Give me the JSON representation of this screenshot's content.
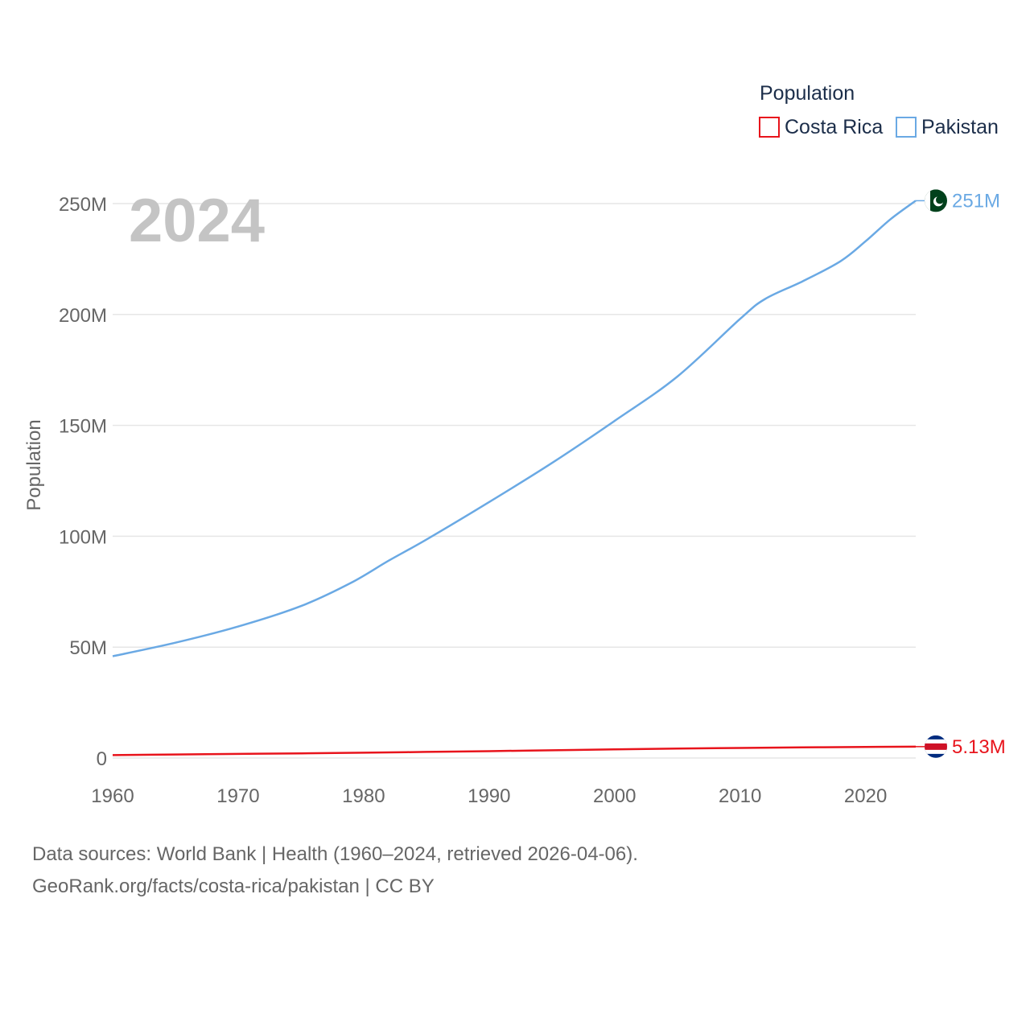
{
  "chart_data": {
    "type": "line",
    "title": "Population",
    "year_label": "2024",
    "xlabel": "",
    "ylabel": "Population",
    "xlim": [
      1960,
      2024
    ],
    "ylim": [
      0,
      250000000
    ],
    "x_ticks": [
      1960,
      1970,
      1980,
      1990,
      2000,
      2010,
      2020
    ],
    "x_tick_labels": [
      "1960",
      "1970",
      "1980",
      "1990",
      "2000",
      "2010",
      "2020"
    ],
    "y_ticks": [
      0,
      50000000,
      100000000,
      150000000,
      200000000,
      250000000
    ],
    "y_tick_labels": [
      "0",
      "50M",
      "100M",
      "150M",
      "200M",
      "250M"
    ],
    "grid": true,
    "legend": {
      "title": "Population",
      "placement": "top-right"
    },
    "series": [
      {
        "name": "Costa Rica",
        "color": "#e8141c",
        "end_label": "5.13M",
        "flag": "costa-rica-flag-icon",
        "points": [
          [
            1960,
            1300000
          ],
          [
            1965,
            1600000
          ],
          [
            1970,
            1850000
          ],
          [
            1975,
            2100000
          ],
          [
            1980,
            2400000
          ],
          [
            1985,
            2750000
          ],
          [
            1990,
            3100000
          ],
          [
            1995,
            3500000
          ],
          [
            2000,
            3900000
          ],
          [
            2005,
            4250000
          ],
          [
            2010,
            4550000
          ],
          [
            2015,
            4800000
          ],
          [
            2020,
            5000000
          ],
          [
            2024,
            5130000
          ]
        ]
      },
      {
        "name": "Pakistan",
        "color": "#6aa9e4",
        "end_label": "251M",
        "flag": "pakistan-flag-icon",
        "points": [
          [
            1960,
            45900000
          ],
          [
            1965,
            52000000
          ],
          [
            1970,
            59300000
          ],
          [
            1975,
            68500000
          ],
          [
            1979,
            79000000
          ],
          [
            1982,
            89000000
          ],
          [
            1985,
            98500000
          ],
          [
            1990,
            115400000
          ],
          [
            1995,
            133000000
          ],
          [
            2000,
            152000000
          ],
          [
            2005,
            172000000
          ],
          [
            2010,
            198000000
          ],
          [
            2012,
            207000000
          ],
          [
            2015,
            215000000
          ],
          [
            2018,
            224000000
          ],
          [
            2020,
            233000000
          ],
          [
            2022,
            243000000
          ],
          [
            2024,
            251300000
          ]
        ]
      }
    ]
  },
  "footer": {
    "line1": "Data sources: World Bank | Health (1960–2024, retrieved 2026-04-06).",
    "line2": "GeoRank.org/facts/costa-rica/pakistan | CC BY"
  }
}
